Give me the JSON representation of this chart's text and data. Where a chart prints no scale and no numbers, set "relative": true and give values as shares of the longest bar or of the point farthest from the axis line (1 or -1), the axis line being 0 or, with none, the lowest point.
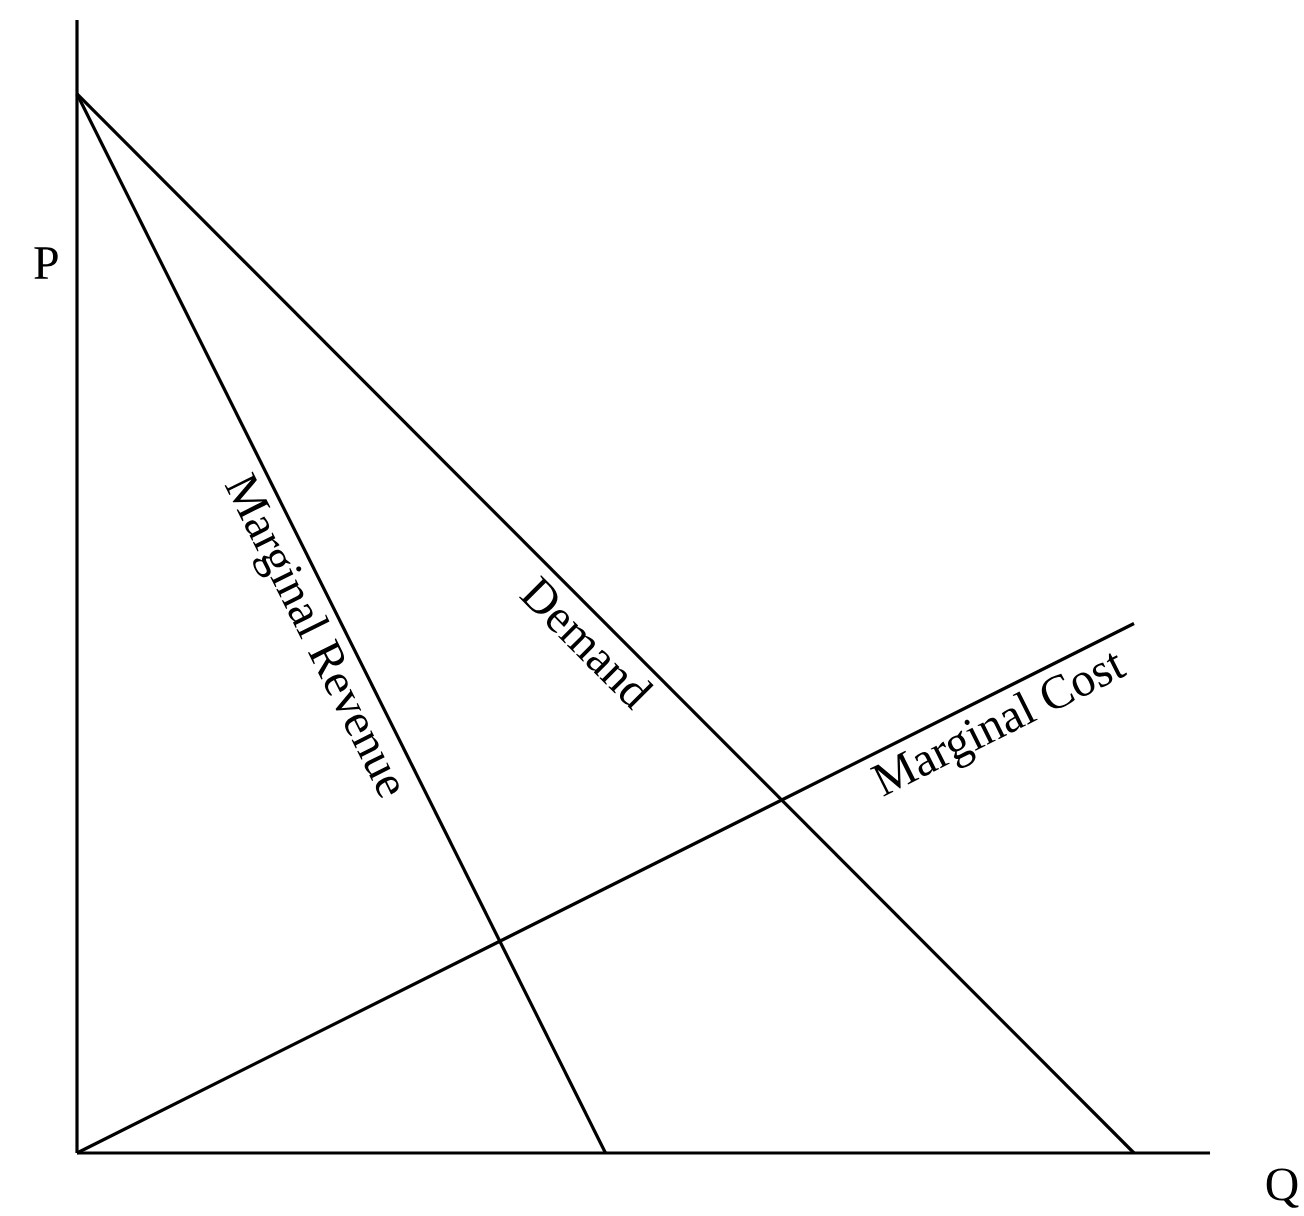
{
  "chart_data": {
    "type": "line",
    "xlabel": "Q",
    "ylabel": "P",
    "relative": true,
    "categories": [
      null,
      null,
      null
    ],
    "series": [
      {
        "name": "Demand",
        "color": "#000000",
        "values": [
          1,
          0.5,
          0
        ]
      },
      {
        "name": "Marginal Revenue",
        "color": "#000000",
        "values": [
          1,
          0,
          null
        ]
      },
      {
        "name": "Marginal Cost",
        "color": "#000000",
        "values": [
          0,
          0.25,
          0.5
        ]
      }
    ],
    "legend": false,
    "marker": "none",
    "line_style": "solid"
  }
}
